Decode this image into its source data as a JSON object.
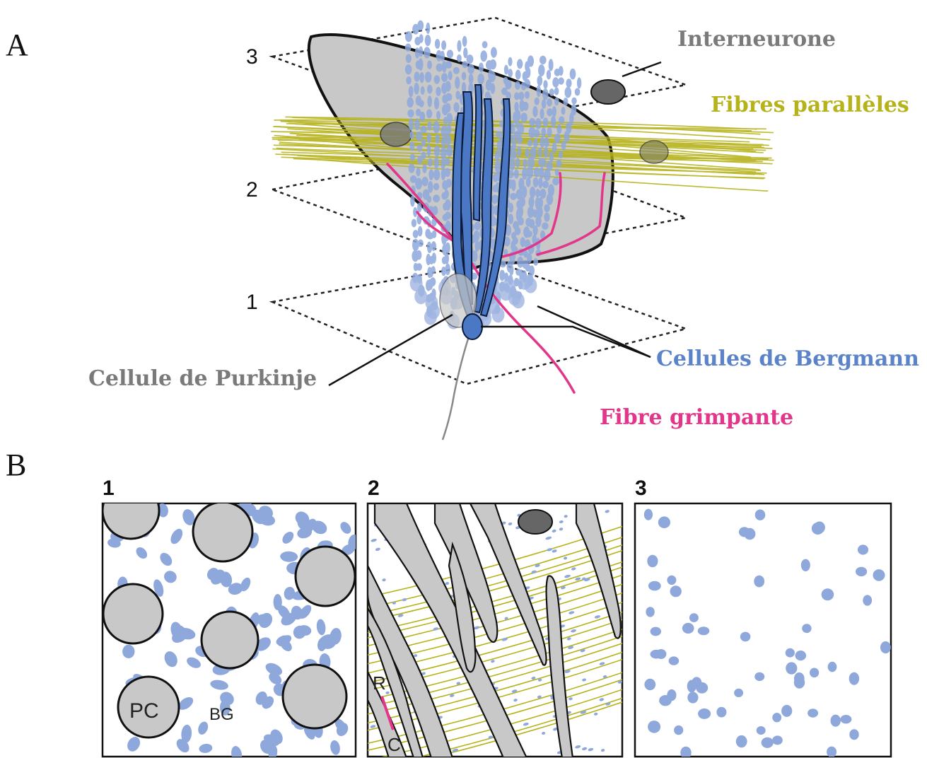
{
  "panels": {
    "a_letter": "A",
    "b_letter": "B"
  },
  "planes": [
    "1",
    "2",
    "3"
  ],
  "labels": {
    "interneurone": "Interneurone",
    "fibres_paralleles": "Fibres parallèles",
    "cellules_bergmann": "Cellules de Bergmann",
    "cellule_purkinje": "Cellule de Purkinje",
    "fibre_grimpante": "Fibre grimpante"
  },
  "sections": [
    {
      "number": "1",
      "labels": {
        "pc": "PC",
        "bg": "BG"
      }
    },
    {
      "number": "2",
      "labels": {
        "r": "R",
        "c": "C"
      }
    },
    {
      "number": "3"
    }
  ],
  "colors": {
    "interneurone": "#7a7a7a",
    "fibres_paralleles": "#b6b21a",
    "cellules_bergmann": "#5b83c9",
    "cellule_purkinje": "#7a7a7a",
    "fibre_grimpante": "#e2368a",
    "purkinje_body": "#c8c8c8",
    "bergmann_fibre": "#8ea8dc",
    "purkinje_dendrite": "#4a78c4"
  }
}
